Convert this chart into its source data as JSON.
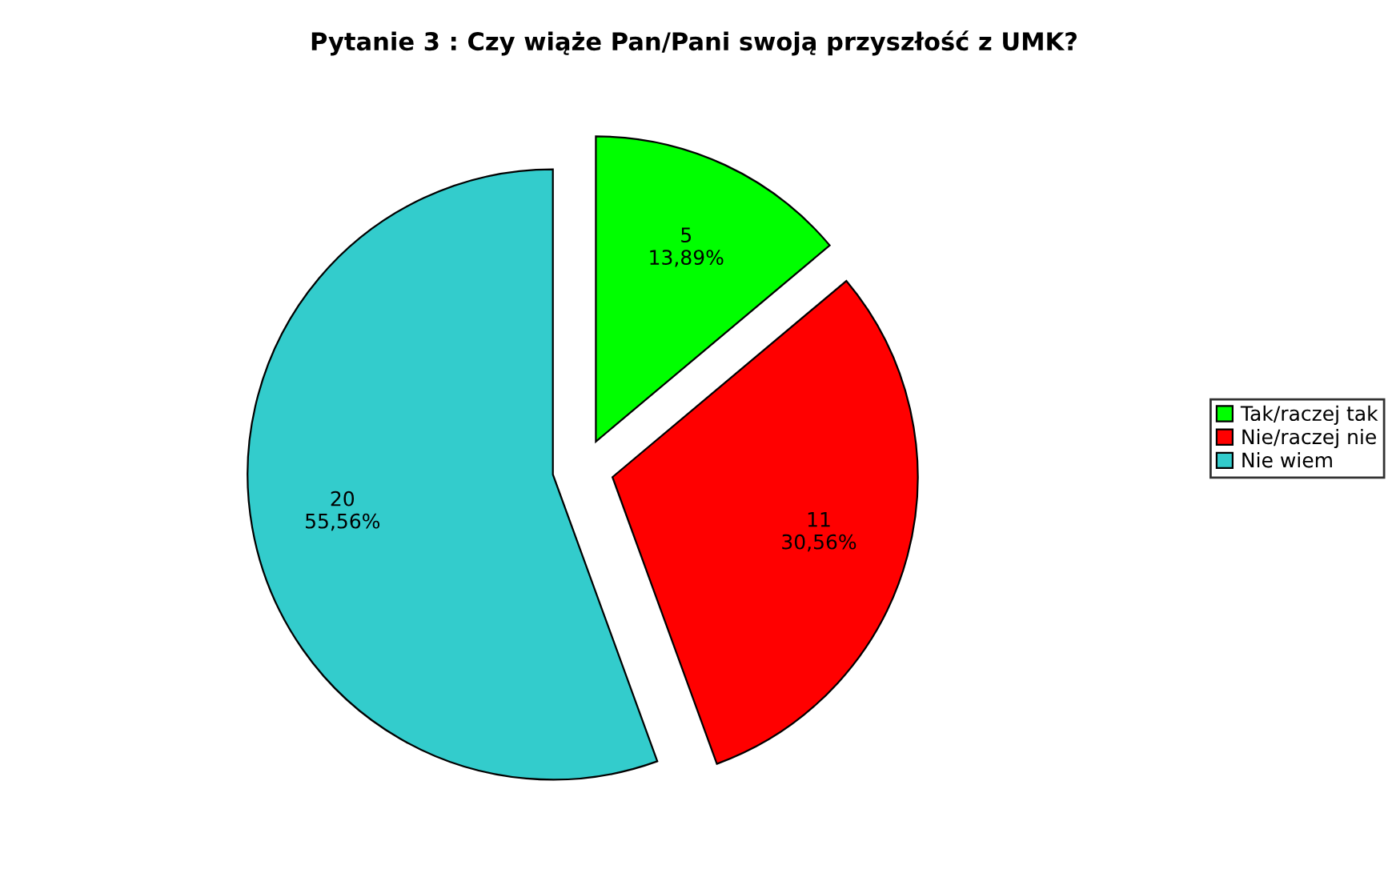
{
  "chart_data": {
    "type": "pie",
    "title": "Pytanie 3 : Czy wiąże Pan/Pani swoją przyszłość z UMK?",
    "categories": [
      "Tak/raczej tak",
      "Nie/raczej nie",
      "Nie wiem"
    ],
    "values": [
      5,
      11,
      20
    ],
    "colors": [
      "#00ff00",
      "#ff0000",
      "#33cccc"
    ],
    "value_labels": [
      "5\n13,89%",
      "11\n30,56%",
      "20\n55,56%"
    ],
    "legend": "right"
  }
}
